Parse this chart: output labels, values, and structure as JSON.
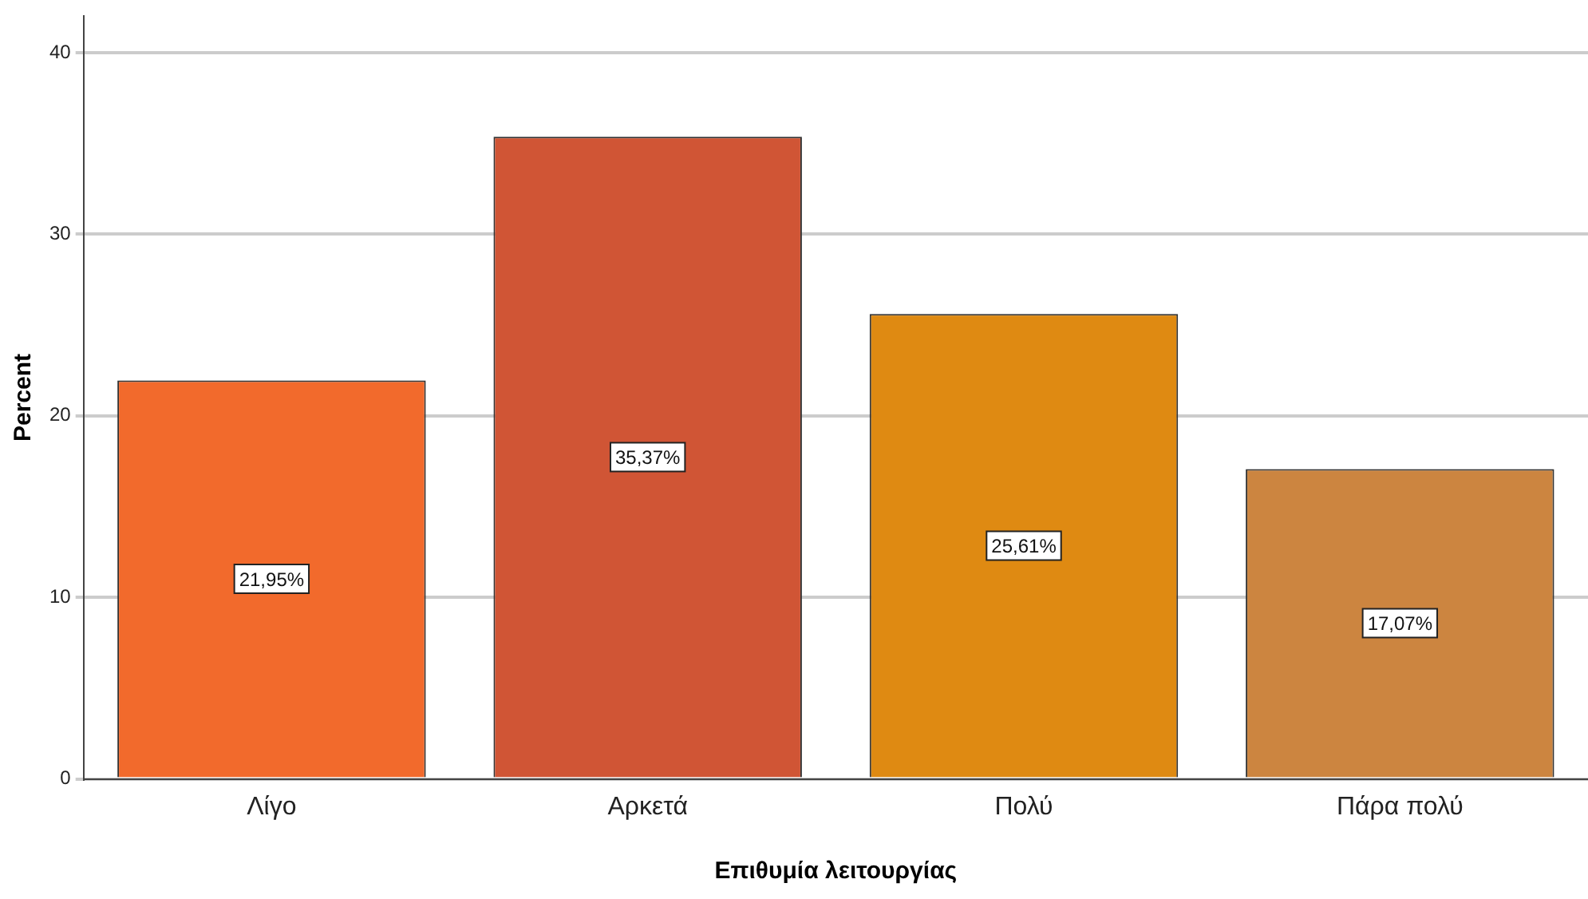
{
  "chart_data": {
    "type": "bar",
    "xlabel": "Επιθυμία λειτουργίας",
    "ylabel": "Percent",
    "categories": [
      "Λίγο",
      "Αρκετά",
      "Πολύ",
      "Πάρα πολύ"
    ],
    "values": [
      21.95,
      35.37,
      25.61,
      17.07
    ],
    "colors": [
      "#f26a2c",
      "#d05535",
      "#df8a12",
      "#cc8540"
    ],
    "value_labels": [
      "21,95%",
      "35,37%",
      "25,61%",
      "17,07%"
    ],
    "ylim": [
      0,
      42
    ],
    "yticks": [
      0,
      10,
      20,
      30,
      40
    ],
    "grid": "y",
    "legend": false
  }
}
